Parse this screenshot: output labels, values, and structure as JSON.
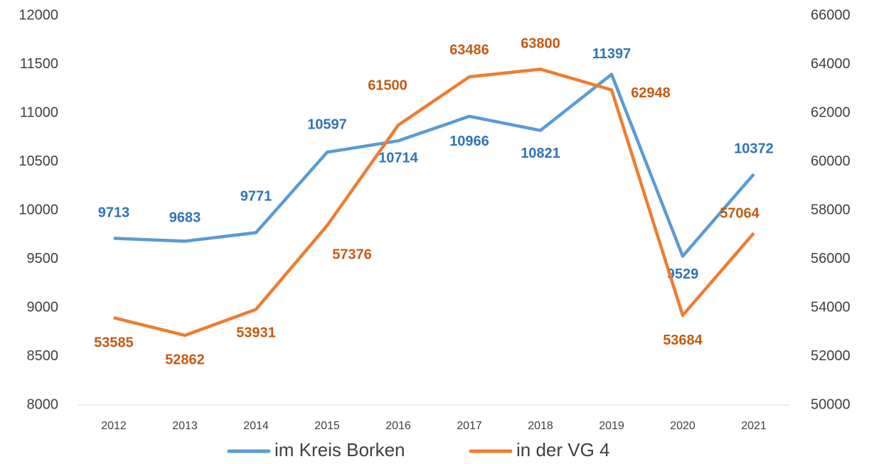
{
  "chart_data": {
    "type": "line",
    "categories": [
      "2012",
      "2013",
      "2014",
      "2015",
      "2016",
      "2017",
      "2018",
      "2019",
      "2020",
      "2021"
    ],
    "series": [
      {
        "name": "im Kreis Borken",
        "color": "#5b9bd5",
        "label_color": "#2e75b6",
        "values": [
          9713,
          9683,
          9771,
          10597,
          10714,
          10966,
          10821,
          11397,
          9529,
          10372
        ]
      },
      {
        "name": "in der VG 4",
        "color": "#ed7d31",
        "label_color": "#c55a11",
        "axis": "y2",
        "values": [
          53585,
          52862,
          53931,
          57376,
          61500,
          63486,
          63800,
          62948,
          53684,
          57064
        ]
      }
    ],
    "ylim": [
      8000,
      12000
    ],
    "yticks": [
      8000,
      8500,
      9000,
      9500,
      10000,
      10500,
      11000,
      11500,
      12000
    ],
    "y2lim": [
      50000,
      66000
    ],
    "y2ticks": [
      50000,
      52000,
      54000,
      56000,
      58000,
      60000,
      62000,
      64000,
      66000
    ],
    "grid": false,
    "legend": "bottom"
  }
}
